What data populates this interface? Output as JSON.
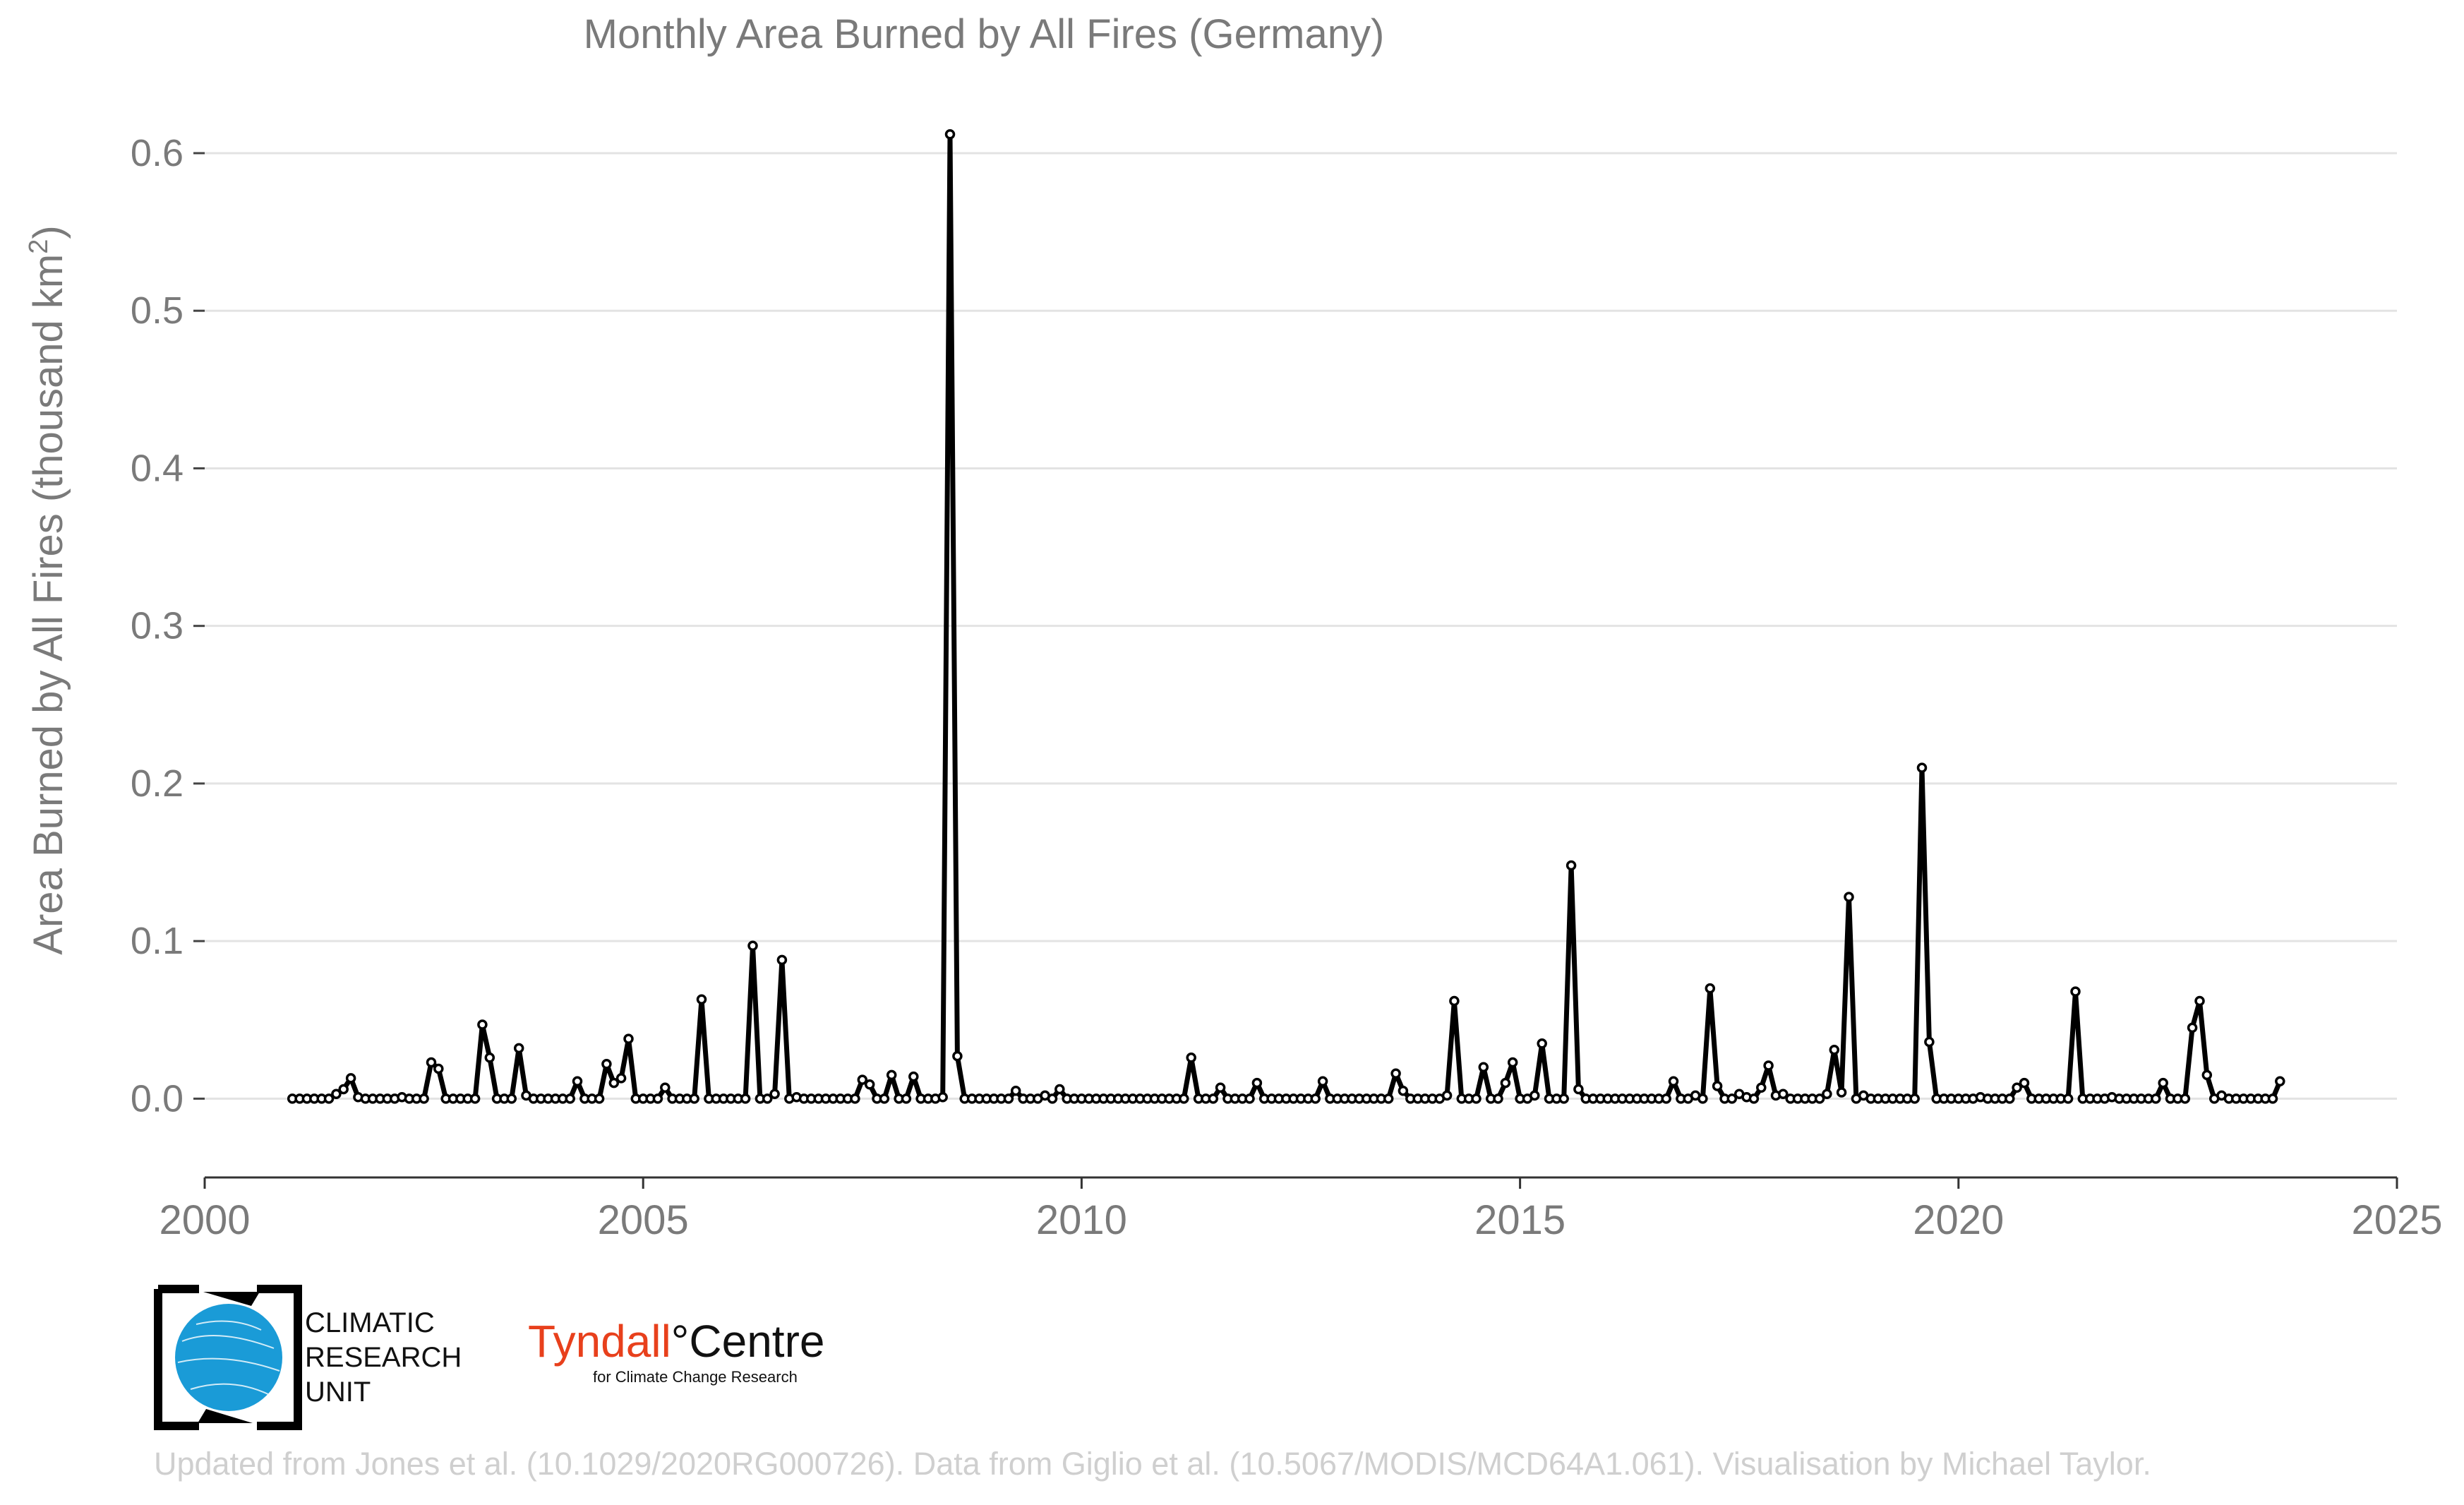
{
  "chart_data": {
    "type": "line",
    "title": "Monthly Area Burned by All Fires (Germany)",
    "ylabel_prefix": "Area Burned by All Fires (thousand km",
    "ylabel_sup": "2",
    "ylabel_suffix": ")",
    "xlabel": "",
    "xlim": [
      2000,
      2025
    ],
    "ylim": [
      -0.05,
      0.63
    ],
    "x_ticks": [
      2000,
      2005,
      2010,
      2015,
      2020,
      2025
    ],
    "x_tick_labels": [
      "2000",
      "2005",
      "2010",
      "2015",
      "2020",
      "2025"
    ],
    "y_ticks": [
      0.0,
      0.1,
      0.2,
      0.3,
      0.4,
      0.5,
      0.6
    ],
    "y_tick_labels": [
      "0.0",
      "0.1",
      "0.2",
      "0.3",
      "0.4",
      "0.5",
      "0.6"
    ],
    "grid": "horizontal",
    "series": [
      {
        "name": "Monthly area burned",
        "start_year": 2001,
        "start_month": 1,
        "values": [
          0,
          0,
          0,
          0,
          0,
          0,
          0.003,
          0.006,
          0.013,
          0.001,
          0,
          0,
          0,
          0,
          0,
          0.001,
          0,
          0,
          0,
          0.023,
          0.019,
          0,
          0,
          0,
          0,
          0,
          0.047,
          0.026,
          0,
          0,
          0,
          0.032,
          0.002,
          0,
          0,
          0,
          0,
          0,
          0,
          0.011,
          0,
          0,
          0,
          0.022,
          0.01,
          0.013,
          0.038,
          0,
          0,
          0,
          0,
          0.007,
          0,
          0,
          0,
          0,
          0.063,
          0,
          0,
          0,
          0,
          0,
          0,
          0.097,
          0,
          0,
          0.003,
          0.088,
          0,
          0.001,
          0,
          0,
          0,
          0,
          0,
          0,
          0,
          0,
          0.012,
          0.009,
          0,
          0,
          0.015,
          0,
          0,
          0.014,
          0,
          0,
          0,
          0.001,
          0.612,
          0.027,
          0,
          0,
          0,
          0,
          0,
          0,
          0,
          0.005,
          0,
          0,
          0,
          0.002,
          0,
          0.006,
          0,
          0,
          0,
          0,
          0,
          0,
          0,
          0,
          0,
          0,
          0,
          0,
          0,
          0,
          0,
          0,
          0,
          0.026,
          0,
          0,
          0,
          0.007,
          0,
          0,
          0,
          0,
          0.01,
          0,
          0,
          0,
          0,
          0,
          0,
          0,
          0,
          0.011,
          0,
          0,
          0,
          0,
          0,
          0,
          0,
          0,
          0,
          0.016,
          0.005,
          0,
          0,
          0,
          0,
          0,
          0.002,
          0.062,
          0,
          0,
          0,
          0.02,
          0,
          0,
          0.01,
          0.023,
          0,
          0,
          0.002,
          0.035,
          0,
          0,
          0,
          0.148,
          0.006,
          0,
          0,
          0,
          0,
          0,
          0,
          0,
          0,
          0,
          0,
          0,
          0,
          0.011,
          0,
          0,
          0.002,
          0,
          0.07,
          0.008,
          0,
          0,
          0.003,
          0.001,
          0,
          0.007,
          0.021,
          0.002,
          0.003,
          0,
          0,
          0,
          0,
          0,
          0.003,
          0.031,
          0.004,
          0.128,
          0,
          0.002,
          0,
          0,
          0,
          0,
          0,
          0,
          0,
          0.21,
          0.036,
          0,
          0,
          0,
          0,
          0,
          0,
          0.001,
          0,
          0,
          0,
          0,
          0.007,
          0.01,
          0,
          0,
          0,
          0,
          0,
          0,
          0.068,
          0,
          0,
          0,
          0,
          0.001,
          0,
          0,
          0,
          0,
          0,
          0,
          0.01,
          0,
          0,
          0,
          0.045,
          0.062,
          0.015,
          0,
          0.002,
          0,
          0,
          0,
          0,
          0,
          0,
          0,
          0.011
        ]
      }
    ],
    "line_color": "#000000",
    "marker_fill": "#ffffff"
  },
  "logos": {
    "cru_lines": [
      "CLIMATIC",
      "RESEARCH",
      "UNIT"
    ],
    "tyndall_main_1": "Tyndall",
    "tyndall_main_2": "°Centre",
    "tyndall_sub": "for Climate Change Research"
  },
  "footer": "Updated from Jones et al. (10.1029/2020RG000726). Data from Giglio et al. (10.5067/MODIS/MCD64A1.061). Visualisation by Michael Taylor."
}
